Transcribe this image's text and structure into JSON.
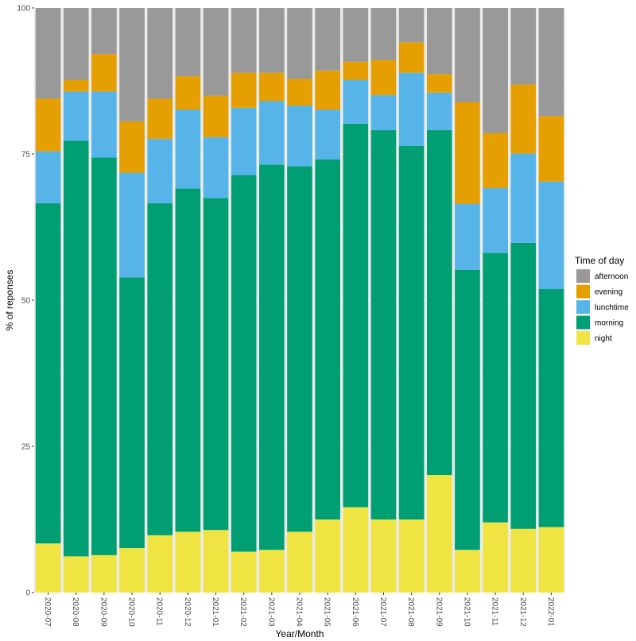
{
  "chart_data": {
    "type": "bar",
    "stacked": true,
    "title": "",
    "xlabel": "Year/Month",
    "ylabel": "% of reponses",
    "ylim": [
      0,
      100
    ],
    "yticks": [
      0,
      25,
      50,
      75,
      100
    ],
    "grid": true,
    "categories": [
      "2020-07",
      "2020-08",
      "2020-09",
      "2020-10",
      "2020-11",
      "2020-12",
      "2021-01",
      "2021-02",
      "2021-03",
      "2021-04",
      "2021-05",
      "2021-06",
      "2021-07",
      "2021-08",
      "2021-09",
      "2021-10",
      "2021-11",
      "2021-12",
      "2022-01"
    ],
    "legend": {
      "title": "Time of day",
      "position": "right",
      "entries": [
        "afternoon",
        "evening",
        "lunchtime",
        "morning",
        "night"
      ]
    },
    "series": [
      {
        "name": "night",
        "color": "#F0E442",
        "values": [
          8.4,
          6.2,
          6.4,
          7.6,
          9.8,
          10.4,
          10.7,
          7.0,
          7.3,
          10.4,
          12.5,
          14.6,
          12.5,
          12.5,
          20.1,
          7.3,
          12.0,
          10.9,
          11.2
        ]
      },
      {
        "name": "morning",
        "color": "#009E73",
        "values": [
          58.2,
          71.1,
          68.0,
          46.3,
          56.8,
          58.7,
          56.8,
          64.4,
          65.9,
          62.5,
          61.6,
          65.6,
          66.6,
          63.9,
          59.0,
          47.9,
          46.1,
          48.9,
          40.7
        ]
      },
      {
        "name": "lunchtime",
        "color": "#56B4E9",
        "values": [
          8.9,
          8.4,
          11.3,
          17.9,
          11.0,
          13.5,
          10.4,
          11.5,
          10.9,
          10.4,
          8.5,
          7.5,
          6.0,
          12.5,
          6.4,
          11.3,
          11.1,
          15.3,
          18.4
        ]
      },
      {
        "name": "evening",
        "color": "#E69F00",
        "values": [
          9.0,
          2.0,
          6.4,
          8.8,
          6.9,
          5.7,
          7.1,
          6.0,
          4.8,
          4.6,
          6.7,
          3.1,
          6.0,
          5.2,
          3.2,
          17.4,
          9.4,
          11.8,
          11.2
        ]
      },
      {
        "name": "afternoon",
        "color": "#999999",
        "values": [
          15.5,
          12.3,
          7.9,
          19.4,
          15.5,
          11.7,
          15.0,
          11.1,
          11.1,
          12.1,
          10.7,
          9.2,
          8.9,
          5.9,
          11.3,
          16.1,
          21.4,
          13.1,
          18.5
        ]
      }
    ]
  }
}
